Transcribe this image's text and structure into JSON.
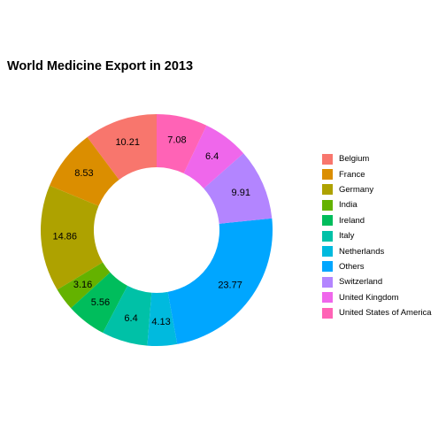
{
  "chart_data": {
    "type": "pie",
    "title": "World Medicine Export in 2013",
    "legend_position": "right",
    "categories": [
      "Belgium",
      "France",
      "Germany",
      "India",
      "Ireland",
      "Italy",
      "Netherlands",
      "Others",
      "Switzerland",
      "United Kingdom",
      "United States of America"
    ],
    "values": [
      10.21,
      8.53,
      14.86,
      3.16,
      5.56,
      6.4,
      4.13,
      23.77,
      9.91,
      6.4,
      7.08
    ],
    "labels": [
      "10.21",
      "8.53",
      "14.86",
      "3.16",
      "5.56",
      "6.4",
      "4.13",
      "23.77",
      "9.91",
      "6.4",
      "7.08"
    ],
    "colors": [
      "#F8766D",
      "#DB8E00",
      "#AEA200",
      "#64B200",
      "#00BD5C",
      "#00C1A7",
      "#00BADE",
      "#00A6FF",
      "#B385FF",
      "#EF67EB",
      "#FF63B6"
    ]
  }
}
